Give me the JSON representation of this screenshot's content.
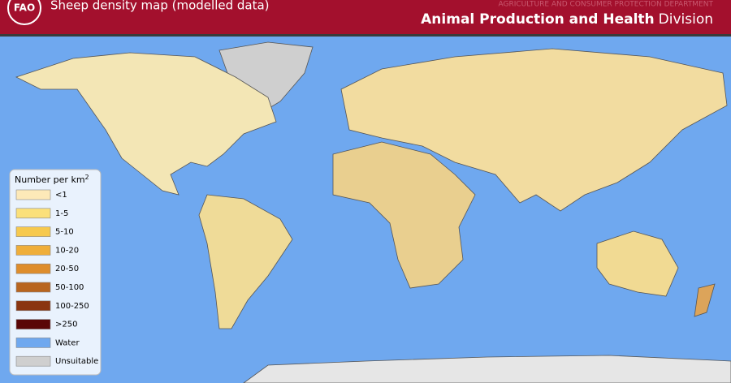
{
  "header": {
    "logo": "FAO",
    "title": "Sheep density map (modelled data)",
    "department": "AGRICULTURE AND CONSUMER PROTECTION DEPARTMENT",
    "division_bold": "Animal Production and Health",
    "division_rest": "Division"
  },
  "legend": {
    "title": "Number per km",
    "title_superscript": "2",
    "items": [
      {
        "label": "<1",
        "color": "#fde9b8"
      },
      {
        "label": "1-5",
        "color": "#fbe07a"
      },
      {
        "label": "5-10",
        "color": "#f6c94e"
      },
      {
        "label": "10-20",
        "color": "#efae3a"
      },
      {
        "label": "20-50",
        "color": "#de8d2c"
      },
      {
        "label": "50-100",
        "color": "#b8651f"
      },
      {
        "label": "100-250",
        "color": "#8a3510"
      },
      {
        "label": ">250",
        "color": "#5a0606"
      },
      {
        "label": "Water",
        "color": "#6fa8ef"
      },
      {
        "label": "Unsuitable",
        "color": "#cfcfcf"
      }
    ]
  }
}
